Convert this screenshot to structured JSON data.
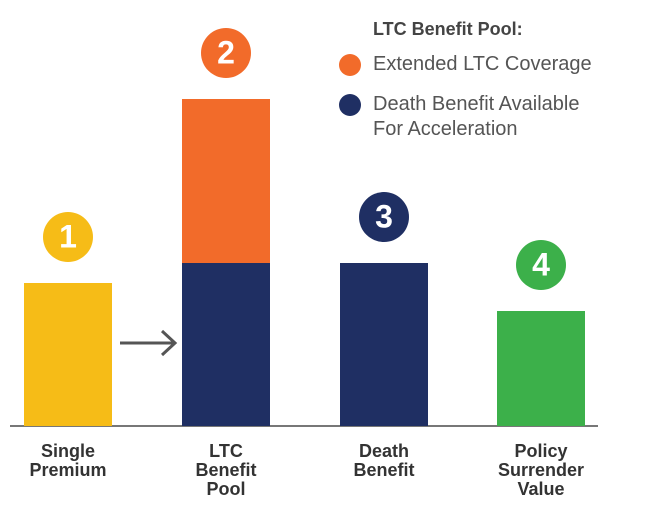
{
  "chart_data": {
    "type": "bar",
    "categories": [
      "Single Premium",
      "LTC Benefit Pool",
      "Death Benefit",
      "Policy Surrender Value"
    ],
    "values": [
      143,
      null,
      null,
      115
    ],
    "colors": [
      "#f6bc17",
      null,
      null,
      "#3cb04a"
    ],
    "series": [
      {
        "name": "Death Benefit Available For Acceleration",
        "color": "#1f2f63",
        "values": [
          null,
          163,
          163,
          null
        ]
      },
      {
        "name": "Extended LTC Coverage",
        "color": "#f26b2a",
        "values": [
          null,
          164,
          null,
          null
        ]
      }
    ],
    "badges": [
      "1",
      "2",
      "3",
      "4"
    ],
    "legend_title": "LTC Benefit Pool:",
    "ylim": [
      0,
      330
    ]
  }
}
